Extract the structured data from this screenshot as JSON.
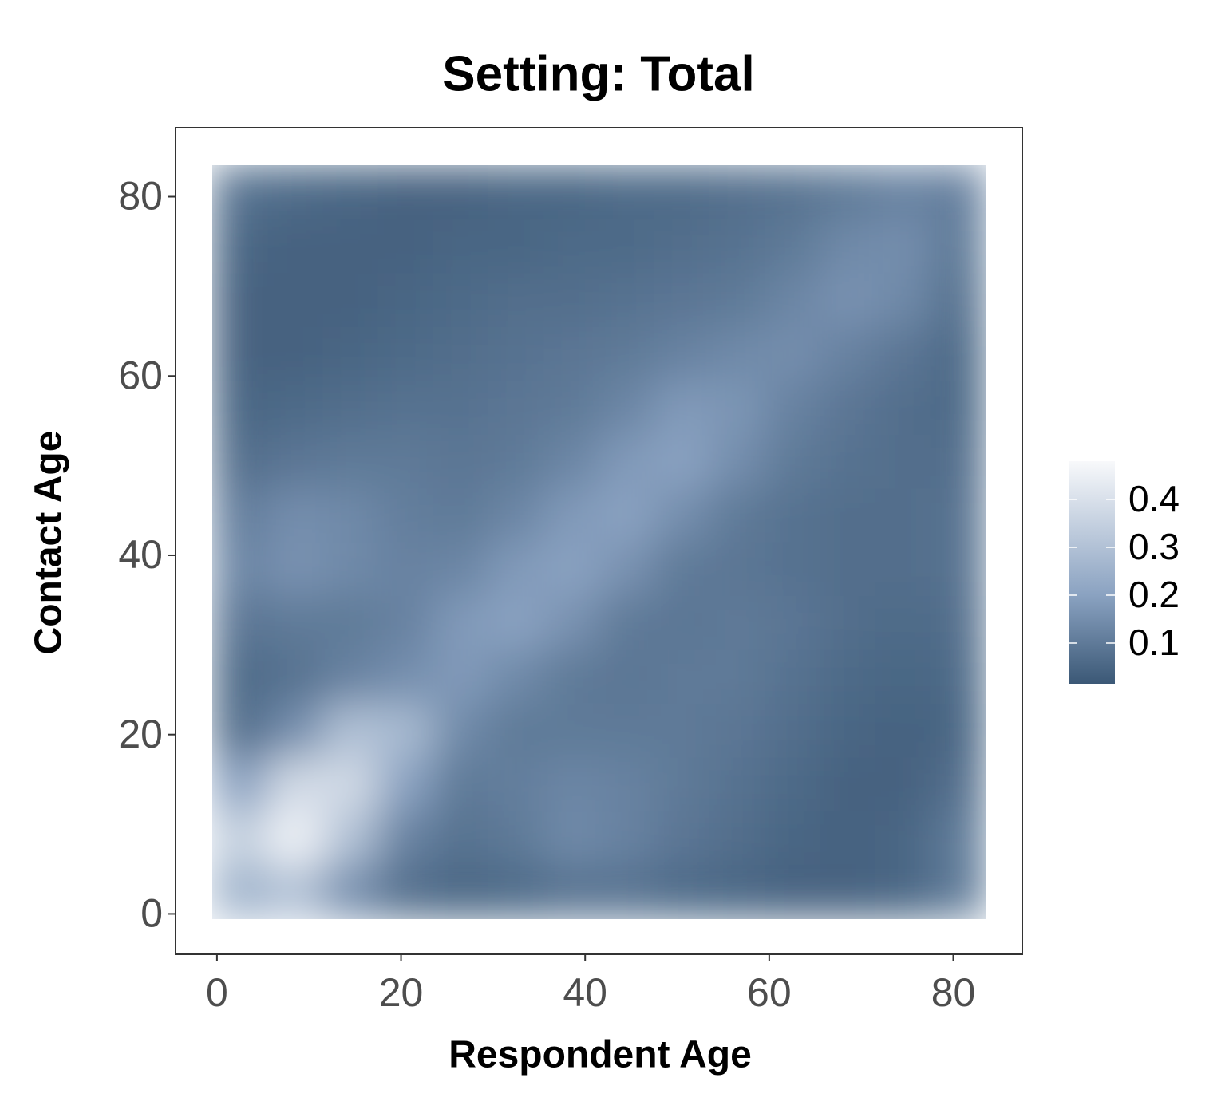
{
  "chart_data": {
    "type": "heatmap",
    "title": "Setting: Total",
    "x_label": "Respondent Age",
    "y_label": "Contact Age",
    "x": [
      2.5,
      8.5,
      14.5,
      20.5,
      26.5,
      32.5,
      38.5,
      44.5,
      50.5,
      56.5,
      62.5,
      68.5,
      74.5,
      80.5
    ],
    "y": [
      2.5,
      8.5,
      14.5,
      20.5,
      26.5,
      32.5,
      38.5,
      44.5,
      50.5,
      56.5,
      62.5,
      68.5,
      74.5,
      80.5
    ],
    "z": [
      [
        0.25,
        0.3,
        0.15,
        0.07,
        0.05,
        0.06,
        0.08,
        0.08,
        0.06,
        0.05,
        0.04,
        0.04,
        0.05,
        0.1
      ],
      [
        0.35,
        0.46,
        0.3,
        0.12,
        0.08,
        0.1,
        0.14,
        0.12,
        0.09,
        0.07,
        0.05,
        0.04,
        0.05,
        0.1
      ],
      [
        0.2,
        0.38,
        0.38,
        0.2,
        0.1,
        0.11,
        0.13,
        0.12,
        0.1,
        0.08,
        0.06,
        0.04,
        0.04,
        0.07
      ],
      [
        0.07,
        0.15,
        0.3,
        0.28,
        0.14,
        0.1,
        0.1,
        0.1,
        0.1,
        0.09,
        0.07,
        0.05,
        0.04,
        0.05
      ],
      [
        0.06,
        0.08,
        0.12,
        0.15,
        0.18,
        0.14,
        0.1,
        0.09,
        0.1,
        0.1,
        0.08,
        0.06,
        0.05,
        0.06
      ],
      [
        0.09,
        0.1,
        0.1,
        0.12,
        0.18,
        0.2,
        0.16,
        0.1,
        0.09,
        0.1,
        0.09,
        0.07,
        0.06,
        0.07
      ],
      [
        0.13,
        0.16,
        0.14,
        0.12,
        0.13,
        0.18,
        0.2,
        0.16,
        0.1,
        0.09,
        0.08,
        0.07,
        0.07,
        0.08
      ],
      [
        0.11,
        0.15,
        0.14,
        0.11,
        0.1,
        0.13,
        0.18,
        0.2,
        0.15,
        0.1,
        0.08,
        0.07,
        0.07,
        0.08
      ],
      [
        0.07,
        0.09,
        0.1,
        0.1,
        0.09,
        0.1,
        0.13,
        0.18,
        0.2,
        0.15,
        0.1,
        0.08,
        0.07,
        0.07
      ],
      [
        0.05,
        0.06,
        0.07,
        0.08,
        0.08,
        0.09,
        0.1,
        0.13,
        0.18,
        0.17,
        0.12,
        0.09,
        0.07,
        0.06
      ],
      [
        0.04,
        0.04,
        0.05,
        0.06,
        0.07,
        0.08,
        0.09,
        0.1,
        0.12,
        0.14,
        0.15,
        0.12,
        0.09,
        0.06
      ],
      [
        0.04,
        0.04,
        0.04,
        0.05,
        0.06,
        0.07,
        0.07,
        0.08,
        0.09,
        0.1,
        0.13,
        0.16,
        0.14,
        0.08
      ],
      [
        0.05,
        0.04,
        0.04,
        0.04,
        0.05,
        0.05,
        0.06,
        0.06,
        0.07,
        0.08,
        0.1,
        0.14,
        0.15,
        0.1
      ],
      [
        0.08,
        0.06,
        0.05,
        0.04,
        0.04,
        0.05,
        0.05,
        0.06,
        0.06,
        0.07,
        0.08,
        0.1,
        0.12,
        0.11
      ]
    ],
    "xlim": [
      -4.5,
      87.5
    ],
    "ylim": [
      -4.5,
      87.7
    ],
    "xticks": [
      0,
      20,
      40,
      60,
      80
    ],
    "yticks": [
      0,
      20,
      40,
      60,
      80
    ],
    "zlim": [
      0.015,
      0.48
    ],
    "zticks": [
      0.1,
      0.2,
      0.3,
      0.4
    ],
    "colorscale": [
      {
        "value": 0.015,
        "color": "#3b5876"
      },
      {
        "value": 0.2,
        "color": "#8aa2c1"
      },
      {
        "value": 0.48,
        "color": "#f8f9fb"
      }
    ]
  }
}
